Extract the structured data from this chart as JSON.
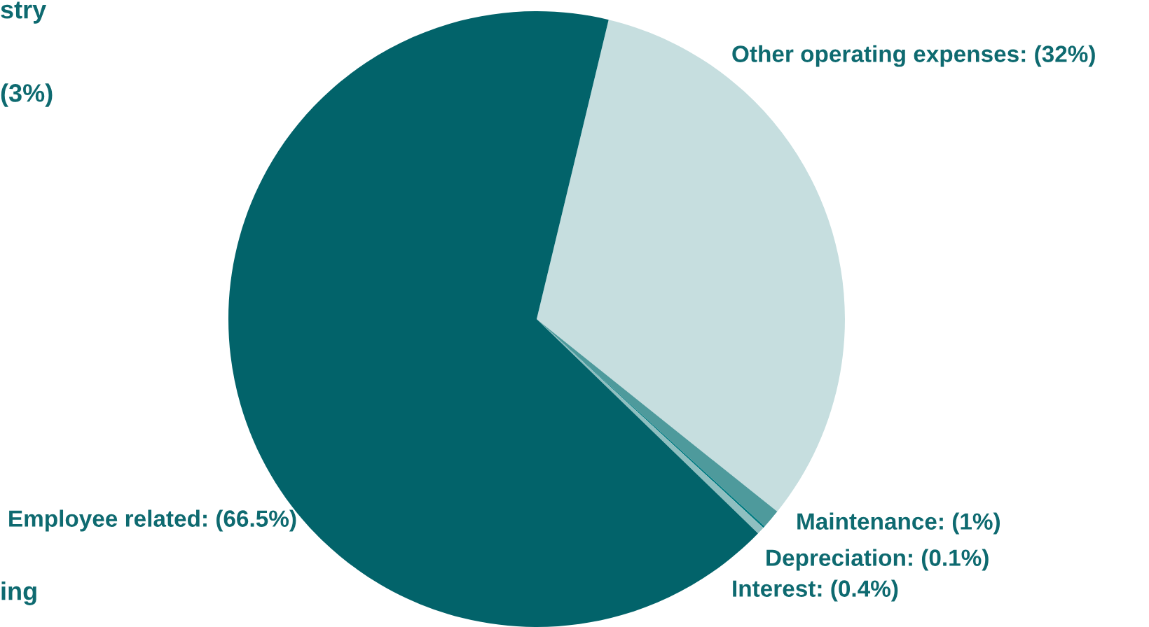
{
  "chart_data": {
    "type": "pie",
    "categories": [
      "Other operating expenses",
      "Maintenance",
      "Depreciation",
      "Interest",
      "Employee related"
    ],
    "values": [
      32,
      1,
      0.1,
      0.4,
      66.5
    ],
    "value_labels": [
      "(32%)",
      "(1%)",
      "(0.1%)",
      "(0.4%)",
      "(66.5%)"
    ],
    "colors": [
      "#c6dedf",
      "#4e9a9c",
      "#007a80",
      "#8fbfc0",
      "#02636a"
    ],
    "annotations": [
      "stry",
      "(3%)",
      "ing"
    ]
  }
}
